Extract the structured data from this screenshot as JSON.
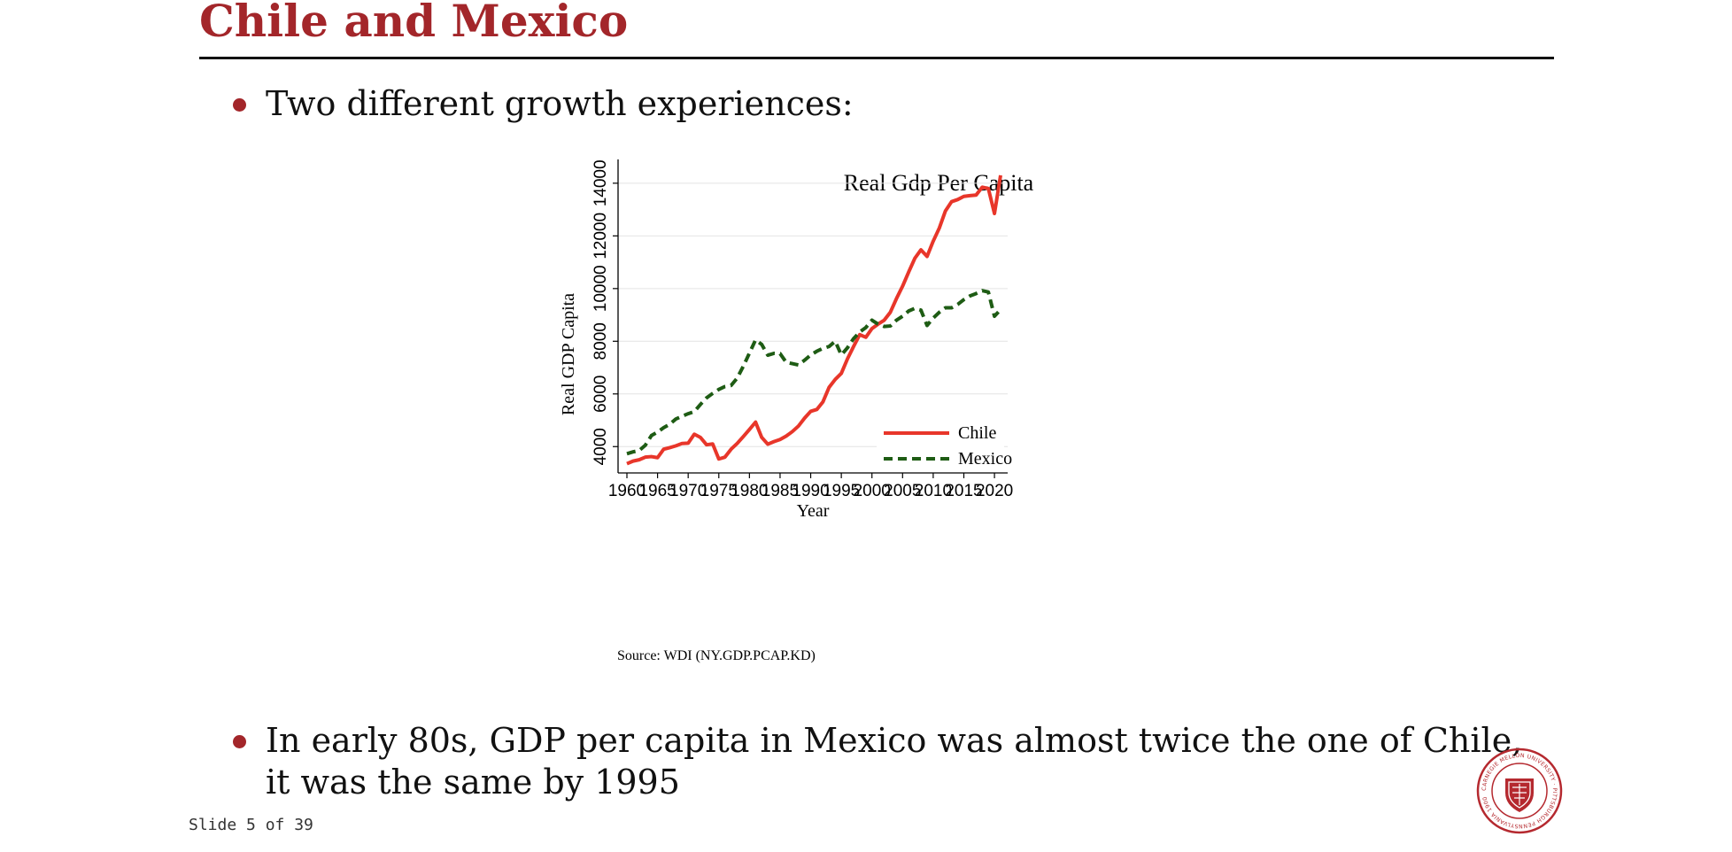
{
  "slide": {
    "title": "Chile and Mexico",
    "bullets": [
      {
        "lines": [
          "Two different growth experiences:"
        ]
      },
      {
        "lines": [
          "In early 80s, GDP per capita in Mexico was almost twice the one of Chile,",
          "it was the same by 1995"
        ]
      }
    ],
    "footer": "Slide 5 of 39",
    "seal_text": "CARNEGIE MELLON UNIVERSITY · PITTSBURGH PENNSYLVANIA 1900"
  },
  "colors": {
    "title": "#a3262a",
    "chile": "#e8362a",
    "mexico": "#1e5c14"
  },
  "chart_data": {
    "type": "line",
    "title": "Real Gdp Per Capita",
    "xlabel": "Year",
    "ylabel": "Real GDP Capita",
    "source": "Source: WDI (NY.GDP.PCAP.KD)",
    "xlim": [
      1960,
      2021
    ],
    "ylim": [
      3000,
      14500
    ],
    "xticks": [
      1960,
      1965,
      1970,
      1975,
      1980,
      1985,
      1990,
      1995,
      2000,
      2005,
      2010,
      2015,
      2020
    ],
    "yticks": [
      4000,
      6000,
      8000,
      10000,
      12000,
      14000
    ],
    "grid": true,
    "legend_position": "bottom-right",
    "x": [
      1960,
      1961,
      1962,
      1963,
      1964,
      1965,
      1966,
      1967,
      1968,
      1969,
      1970,
      1971,
      1972,
      1973,
      1974,
      1975,
      1976,
      1977,
      1978,
      1979,
      1980,
      1981,
      1982,
      1983,
      1984,
      1985,
      1986,
      1987,
      1988,
      1989,
      1990,
      1991,
      1992,
      1993,
      1994,
      1995,
      1996,
      1997,
      1998,
      1999,
      2000,
      2001,
      2002,
      2003,
      2004,
      2005,
      2006,
      2007,
      2008,
      2009,
      2010,
      2011,
      2012,
      2013,
      2014,
      2015,
      2016,
      2017,
      2018,
      2019,
      2020,
      2021
    ],
    "series": [
      {
        "name": "Chile",
        "style": "solid",
        "values": [
          3350,
          3450,
          3500,
          3600,
          3620,
          3580,
          3900,
          3960,
          4030,
          4120,
          4130,
          4470,
          4350,
          4070,
          4100,
          3530,
          3600,
          3900,
          4120,
          4380,
          4650,
          4930,
          4350,
          4090,
          4190,
          4270,
          4400,
          4570,
          4780,
          5080,
          5340,
          5410,
          5700,
          6250,
          6550,
          6780,
          7330,
          7800,
          8250,
          8150,
          8480,
          8650,
          8800,
          9100,
          9620,
          10090,
          10630,
          11150,
          11470,
          11220,
          11800,
          12300,
          12950,
          13300,
          13380,
          13500,
          13530,
          13550,
          13850,
          13800,
          12850,
          14300
        ]
      },
      {
        "name": "Mexico",
        "style": "dashed",
        "values": [
          3730,
          3800,
          3850,
          4050,
          4420,
          4550,
          4720,
          4850,
          5050,
          5150,
          5250,
          5330,
          5600,
          5850,
          6020,
          6170,
          6280,
          6320,
          6600,
          7050,
          7550,
          8050,
          7880,
          7470,
          7540,
          7530,
          7200,
          7150,
          7100,
          7280,
          7480,
          7620,
          7730,
          7800,
          8000,
          7480,
          7750,
          8100,
          8350,
          8520,
          8800,
          8650,
          8560,
          8580,
          8800,
          8950,
          9150,
          9250,
          9180,
          8600,
          8880,
          9100,
          9270,
          9270,
          9400,
          9580,
          9720,
          9810,
          9920,
          9870,
          8950,
          9200
        ]
      }
    ]
  }
}
